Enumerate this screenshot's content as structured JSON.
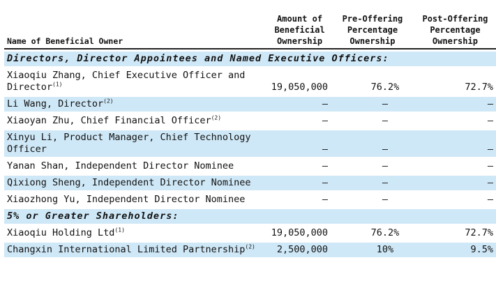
{
  "headers": {
    "name": "Name of Beneficial Owner",
    "amount": "Amount of Beneficial Ownership",
    "pre": "Pre-Offering Percentage Ownership",
    "post": "Post-Offering Percentage Ownership"
  },
  "sections": {
    "directors": "Directors, Director Appointees and Named Executive Officers:",
    "shareholders": "5% or Greater Shareholders:"
  },
  "rows": [
    {
      "name": "Xiaoqiu Zhang, Chief Executive Officer and Director",
      "note": "(1)",
      "amount": "19,050,000",
      "pre": "76.2%",
      "post": "72.7%"
    },
    {
      "name": "Li Wang, Director",
      "note": "(2)",
      "amount": "—",
      "pre": "—",
      "post": "—"
    },
    {
      "name": "Xiaoyan Zhu, Chief Financial Officer",
      "note": "(2)",
      "amount": "—",
      "pre": "—",
      "post": "—"
    },
    {
      "name": "Xinyu Li, Product Manager, Chief Technology Officer",
      "note": "",
      "amount": "—",
      "pre": "—",
      "post": "—"
    },
    {
      "name": "Yanan Shan, Independent Director Nominee",
      "note": "",
      "amount": "—",
      "pre": "—",
      "post": "—"
    },
    {
      "name": "Qixiong Sheng, Independent Director Nominee",
      "note": "",
      "amount": "—",
      "pre": "—",
      "post": "—"
    },
    {
      "name": "Xiaozhong Yu, Independent Director Nominee",
      "note": "",
      "amount": "—",
      "pre": "—",
      "post": "—"
    },
    {
      "name": "Xiaoqiu Holding Ltd",
      "note": "(1)",
      "amount": "19,050,000",
      "pre": "76.2%",
      "post": "72.7%"
    },
    {
      "name": "Changxin International Limited Partnership",
      "note": "(2)",
      "amount": "2,500,000",
      "pre": "10%",
      "post": "9.5%"
    }
  ]
}
